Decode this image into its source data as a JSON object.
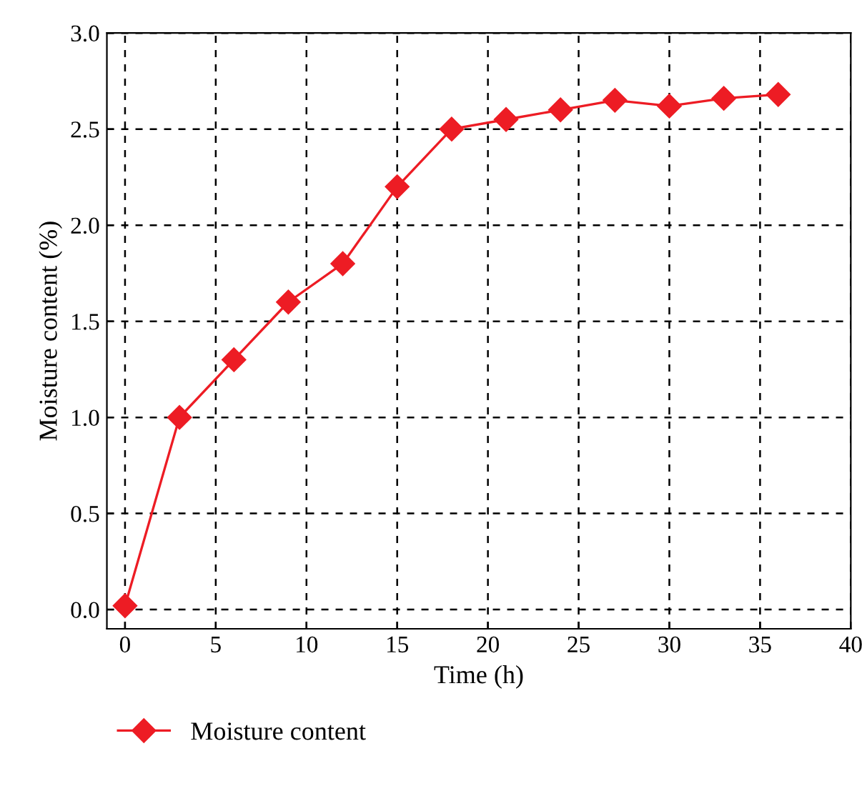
{
  "chart_data": {
    "type": "line",
    "xlabel": "Time (h)",
    "ylabel": "Moisture content (%)",
    "x": [
      0,
      3,
      6,
      9,
      12,
      15,
      18,
      21,
      24,
      27,
      30,
      33,
      36
    ],
    "series": [
      {
        "name": "Moisture content",
        "color": "#ed1c24",
        "values": [
          0.02,
          1.0,
          1.3,
          1.6,
          1.8,
          2.2,
          2.5,
          2.55,
          2.6,
          2.65,
          2.62,
          2.66,
          2.68
        ]
      }
    ],
    "xlim": [
      -1,
      40
    ],
    "xticks": [
      0,
      5,
      10,
      15,
      20,
      25,
      30,
      35,
      40
    ],
    "ylim": [
      -0.1,
      3.0
    ],
    "yticks": [
      {
        "value": 0,
        "label": "0.0"
      },
      {
        "value": 0.5,
        "label": "0.5"
      },
      {
        "value": 1.0,
        "label": "1.0"
      },
      {
        "value": 1.5,
        "label": "1.5"
      },
      {
        "value": 2.0,
        "label": "2.0"
      },
      {
        "value": 2.5,
        "label": "2.5"
      },
      {
        "value": 3.0,
        "label": "3.0"
      }
    ],
    "grid": true,
    "legend": "bottom left",
    "marker": "diamond",
    "line_style": "solid"
  }
}
